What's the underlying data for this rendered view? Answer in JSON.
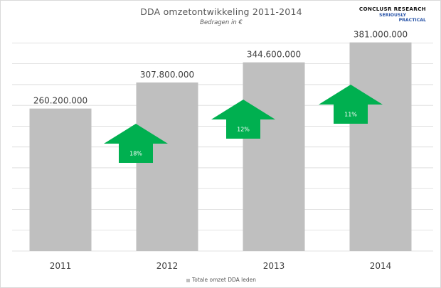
{
  "brand": {
    "line1": "CONCLUSR RESEARCH",
    "line2": "SERIOUSLY",
    "line3": "PRACTICAL"
  },
  "colors": {
    "bar": "#bfbfbf",
    "arrow": "#00b050",
    "grid": "#d9d9d9",
    "text": "#595959"
  },
  "chart_data": {
    "type": "bar",
    "title": "DDA omzetontwikkeling  2011-2014",
    "subtitle": "Bedragen  in €",
    "categories": [
      "2011",
      "2012",
      "2013",
      "2014"
    ],
    "series": [
      {
        "name": "Totale omzet DDA leden",
        "values": [
          260200000,
          307800000,
          344600000,
          381000000
        ],
        "labels": [
          "260.200.000",
          "307.800.000",
          "344.600.000",
          "381.000.000"
        ]
      }
    ],
    "growth_arrows": [
      {
        "label": "18%",
        "between": [
          "2011",
          "2012"
        ]
      },
      {
        "label": "12%",
        "between": [
          "2012",
          "2013"
        ]
      },
      {
        "label": "11%",
        "between": [
          "2013",
          "2014"
        ]
      }
    ],
    "ylim": [
      0,
      400000000
    ],
    "grid": true,
    "legend_position": "bottom"
  }
}
